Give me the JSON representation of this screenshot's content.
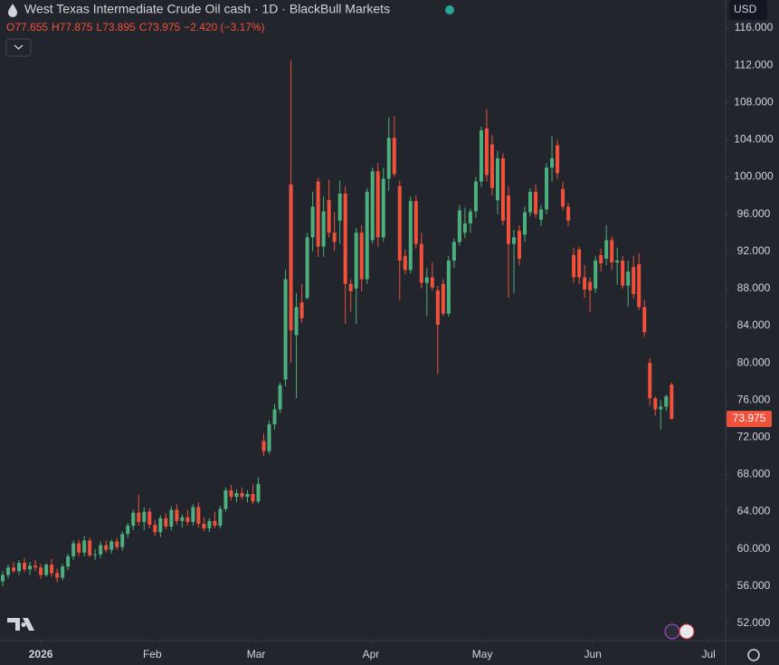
{
  "header": {
    "title": "West Texas Intermediate Crude Oil cash · 1D · BlackBull Markets",
    "ohlc": [
      "O77.655",
      "H77.875",
      "L73.895",
      "C73.975",
      "−2.420 (−3.17%)"
    ],
    "currency": "USD"
  },
  "chart_data": {
    "type": "candlestick",
    "up_color": "#4caf7d",
    "down_color": "#f0513b",
    "grid": false,
    "last_price": 73.975,
    "ylim": [
      50.92,
      119.02
    ],
    "yticks": [
      {
        "value": 116,
        "label": "116.000"
      },
      {
        "value": 112,
        "label": "112.000"
      },
      {
        "value": 108,
        "label": "108.000"
      },
      {
        "value": 104,
        "label": "104.000"
      },
      {
        "value": 100,
        "label": "100.000"
      },
      {
        "value": 96,
        "label": "96.000"
      },
      {
        "value": 92,
        "label": "92.000"
      },
      {
        "value": 88,
        "label": "88.000"
      },
      {
        "value": 84,
        "label": "84.000"
      },
      {
        "value": 80,
        "label": "80.000"
      },
      {
        "value": 76,
        "label": "76.000"
      },
      {
        "value": 72,
        "label": "72.000"
      },
      {
        "value": 68,
        "label": "68.000"
      },
      {
        "value": 64,
        "label": "64.000"
      },
      {
        "value": 60,
        "label": "60.000"
      },
      {
        "value": 56,
        "label": "56.000"
      },
      {
        "value": 52,
        "label": "52.000"
      }
    ],
    "xlim": [
      -0.5,
      132.6
    ],
    "xticks": [
      {
        "value": 7,
        "label": "2026"
      },
      {
        "value": 27.5,
        "label": "Feb"
      },
      {
        "value": 46.6,
        "label": "Mar"
      },
      {
        "value": 67.7,
        "label": "Apr"
      },
      {
        "value": 88.2,
        "label": "May"
      },
      {
        "value": 108.5,
        "label": "Jun"
      },
      {
        "value": 129.8,
        "label": "Jul"
      }
    ],
    "open": [
      56.5,
      57.2,
      58.0,
      57.6,
      58.5,
      57.8,
      58.2,
      58.0,
      57.2,
      58.3,
      57.4,
      56.9,
      58.1,
      59.2,
      60.6,
      59.6,
      60.9,
      59.3,
      59.4,
      60.4,
      59.9,
      60.8,
      60.2,
      61.6,
      62.5,
      63.9,
      62.9,
      64.0,
      62.6,
      61.8,
      63.3,
      62.4,
      64.2,
      63.0,
      63.4,
      62.9,
      64.5,
      62.7,
      62.2,
      63.0,
      62.5,
      64.3,
      66.3,
      65.6,
      66.0,
      65.6,
      65.9,
      65.1,
      71.6,
      70.5,
      73.4,
      75.0,
      78.2,
      99.2,
      83.0,
      86.5,
      87.0,
      93.5,
      99.5,
      92.5,
      97.5,
      94.0,
      95.3,
      98.2,
      88.5,
      88.0,
      94.0,
      89.0,
      93.2,
      100.6,
      93.5,
      99.8,
      104.2,
      99.0,
      91.5,
      90.0,
      97.4,
      92.8,
      88.6,
      89.2,
      87.8,
      88.5,
      85.3,
      91.0,
      93.0,
      94.0,
      95.0,
      96.3,
      99.5,
      105.2,
      103.5,
      97.5,
      102.0,
      98.0,
      92.8,
      94.2,
      93.8,
      96.2,
      98.4,
      95.4,
      96.5,
      101.0,
      103.4,
      98.7,
      96.8,
      91.6,
      92.2,
      89.2,
      88.7,
      88.0,
      91.6,
      91.2,
      93.2,
      90.8,
      91.0,
      88.3,
      90.3,
      90.6,
      86.0,
      80.0,
      76.2,
      75.0,
      75.3,
      77.655
    ],
    "high": [
      57.6,
      58.3,
      58.6,
      58.8,
      59.0,
      58.6,
      58.8,
      58.4,
      58.5,
      58.9,
      57.9,
      58.4,
      59.5,
      60.9,
      61.0,
      61.4,
      61.2,
      60.0,
      60.8,
      60.9,
      61.0,
      61.2,
      61.9,
      62.8,
      64.2,
      65.8,
      64.5,
      64.4,
      63.1,
      63.6,
      63.8,
      64.6,
      64.8,
      63.7,
      64.2,
      64.8,
      65.0,
      63.4,
      63.3,
      64.0,
      64.6,
      66.6,
      66.9,
      66.4,
      66.6,
      66.3,
      66.9,
      67.7,
      72.4,
      73.8,
      75.6,
      77.9,
      90.0,
      112.5,
      87.5,
      88.5,
      94.0,
      98.4,
      99.9,
      97.9,
      99.7,
      96.2,
      99.6,
      99.0,
      89.0,
      94.5,
      94.8,
      98.8,
      101.0,
      101.5,
      101.0,
      106.4,
      106.5,
      99.6,
      92.2,
      97.9,
      98.0,
      94.0,
      90.2,
      90.8,
      88.3,
      89.0,
      91.5,
      93.4,
      97.0,
      96.7,
      96.6,
      100.0,
      105.4,
      107.3,
      104.5,
      102.8,
      102.5,
      99.0,
      94.3,
      94.8,
      96.8,
      98.8,
      99.2,
      97.0,
      101.5,
      104.4,
      104.0,
      99.5,
      97.2,
      92.4,
      92.5,
      90.5,
      89.2,
      91.5,
      92.3,
      94.8,
      93.6,
      92.4,
      91.5,
      91.0,
      91.5,
      91.8,
      86.8,
      80.5,
      76.4,
      76.0,
      76.6,
      77.875
    ],
    "low": [
      56.0,
      56.8,
      57.4,
      57.2,
      57.5,
      57.2,
      57.6,
      56.8,
      57.0,
      57.0,
      56.4,
      56.6,
      57.7,
      58.8,
      59.2,
      59.2,
      59.1,
      58.8,
      59.0,
      59.6,
      59.5,
      59.9,
      59.8,
      61.2,
      62.0,
      62.5,
      62.0,
      62.2,
      61.4,
      61.3,
      62.1,
      62.0,
      62.6,
      62.3,
      62.5,
      62.5,
      62.3,
      61.9,
      61.8,
      62.2,
      62.2,
      64.0,
      65.2,
      65.0,
      65.3,
      65.0,
      64.8,
      64.9,
      70.0,
      70.2,
      72.8,
      74.6,
      77.5,
      80.0,
      76.2,
      84.3,
      86.8,
      92.0,
      91.4,
      91.4,
      93.5,
      92.0,
      92.8,
      84.2,
      85.5,
      84.2,
      87.7,
      88.5,
      92.8,
      92.5,
      93.0,
      98.5,
      100.0,
      86.8,
      89.5,
      89.6,
      92.3,
      88.0,
      85.0,
      87.8,
      78.8,
      85.0,
      85.0,
      90.2,
      92.6,
      93.4,
      94.0,
      95.6,
      98.9,
      99.5,
      98.0,
      96.0,
      94.8,
      87.0,
      87.5,
      90.5,
      93.0,
      95.8,
      95.6,
      94.7,
      96.0,
      99.5,
      99.8,
      96.4,
      94.7,
      88.6,
      88.5,
      87.0,
      85.5,
      87.5,
      89.8,
      90.5,
      90.0,
      88.4,
      88.0,
      86.0,
      86.9,
      85.7,
      82.8,
      75.4,
      74.3,
      72.8,
      74.8,
      73.895
    ],
    "close": [
      57.2,
      58.0,
      57.6,
      58.5,
      57.8,
      58.2,
      58.0,
      57.2,
      58.3,
      57.4,
      56.9,
      58.1,
      59.2,
      60.6,
      59.6,
      60.9,
      59.3,
      59.4,
      60.4,
      59.9,
      60.8,
      60.2,
      61.6,
      62.5,
      63.9,
      62.9,
      64.0,
      62.6,
      61.8,
      63.3,
      62.4,
      64.2,
      63.0,
      63.4,
      62.9,
      64.5,
      62.7,
      62.2,
      63.0,
      62.5,
      64.3,
      66.3,
      65.6,
      66.0,
      65.6,
      65.9,
      65.1,
      67.0,
      70.5,
      73.4,
      75.0,
      77.6,
      89.0,
      83.5,
      86.0,
      84.8,
      93.5,
      96.8,
      92.5,
      96.3,
      94.0,
      93.0,
      98.2,
      88.5,
      87.7,
      94.0,
      89.0,
      98.4,
      100.6,
      93.5,
      99.8,
      104.2,
      100.3,
      91.0,
      90.0,
      97.4,
      92.8,
      88.6,
      89.2,
      88.1,
      84.1,
      85.3,
      91.0,
      93.0,
      96.4,
      95.0,
      96.3,
      99.5,
      105.0,
      100.2,
      98.8,
      102.0,
      95.3,
      92.8,
      93.5,
      91.2,
      96.2,
      98.4,
      96.0,
      96.5,
      101.0,
      102.0,
      100.4,
      96.8,
      95.3,
      89.2,
      89.2,
      87.9,
      87.8,
      91.0,
      90.7,
      93.2,
      90.8,
      91.0,
      88.3,
      89.8,
      87.4,
      86.0,
      83.3,
      76.2,
      75.0,
      75.3,
      76.4,
      73.975
    ]
  }
}
